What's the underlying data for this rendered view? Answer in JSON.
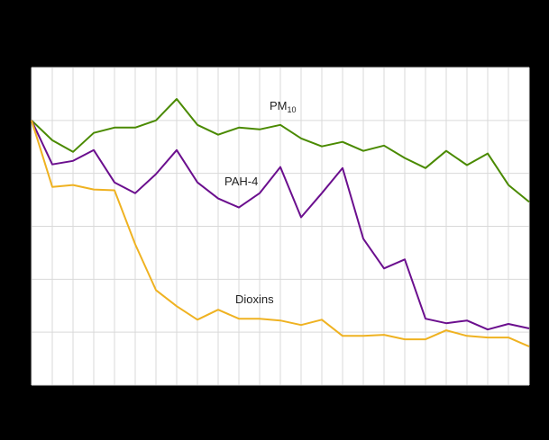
{
  "chart_data": {
    "type": "line",
    "title": "",
    "xlabel": "",
    "ylabel": "",
    "ylim": [
      0,
      120
    ],
    "yticks": [
      0,
      20,
      40,
      60,
      80,
      100,
      120
    ],
    "x": [
      1,
      2,
      3,
      4,
      5,
      6,
      7,
      8,
      9,
      10,
      11,
      12,
      13,
      14,
      15,
      16,
      17,
      18,
      19,
      20,
      21,
      22,
      23,
      24,
      25
    ],
    "grid": true,
    "legend": "inline labels",
    "series": [
      {
        "name": "PM10",
        "label_main": "PM",
        "label_sub": "10",
        "color": "#4a8a00",
        "values": [
          100,
          92.5,
          88.1,
          95.3,
          97.3,
          97.3,
          100,
          108.1,
          98.3,
          94.6,
          97.3,
          96.6,
          98.3,
          93.2,
          90.2,
          91.9,
          88.5,
          90.5,
          85.8,
          82.0,
          88.5,
          83.1,
          87.5,
          75.6,
          69.2
        ]
      },
      {
        "name": "PAH-4",
        "label_main": "PAH-4",
        "label_sub": "",
        "color": "#6b0f8e",
        "values": [
          100,
          83.4,
          84.7,
          88.8,
          76.6,
          72.5,
          79.7,
          88.8,
          76.6,
          70.5,
          67.1,
          72.5,
          82.4,
          63.4,
          72.5,
          82.0,
          55.3,
          44.1,
          47.5,
          25.1,
          23.4,
          24.4,
          21.0,
          23.1,
          21.4
        ]
      },
      {
        "name": "Dioxins",
        "label_main": "Dioxins",
        "label_sub": "",
        "color": "#efb221",
        "values": [
          100,
          74.9,
          75.6,
          73.9,
          73.6,
          53.2,
          35.9,
          29.8,
          24.7,
          28.5,
          25.1,
          25.1,
          24.4,
          22.7,
          24.7,
          18.6,
          18.6,
          19.0,
          17.3,
          17.3,
          20.7,
          18.6,
          18.0,
          18.0,
          14.6
        ]
      }
    ]
  },
  "labels": {
    "pm10_main": "PM",
    "pm10_sub": "10",
    "pah4": "PAH-4",
    "dioxins": "Dioxins"
  },
  "colors": {
    "background": "#000000",
    "plot_bg": "#ffffff",
    "grid": "#d9d9d9"
  }
}
